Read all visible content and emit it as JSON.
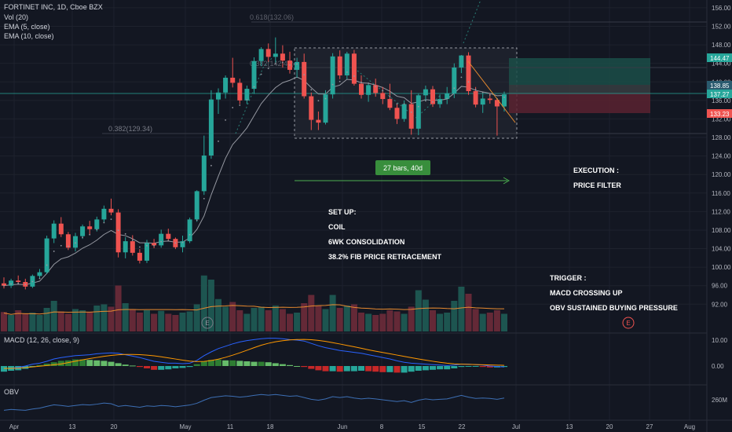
{
  "header": {
    "symbol_line": "FORTINET INC, 1D, Cboe BZX",
    "indicators": [
      "Vol (20)",
      "EMA (5, close)",
      "EMA (10, close)"
    ]
  },
  "colors": {
    "bg": "#131722",
    "grid": "#1e222d",
    "up": "#26a69a",
    "down": "#ef5350",
    "vol_up": "#26a69a",
    "vol_down": "#ef5350",
    "ema5": "#c2c4c9",
    "ema10": "#e88a2f",
    "macd": "#2962ff",
    "signal": "#ff9800",
    "obv": "#2a5a9e",
    "annotation": "#ffffff",
    "fib": "#787b86"
  },
  "annotations": {
    "setup_title": "SET UP:",
    "setup_items": [
      "COIL",
      "6WK CONSOLIDATION",
      "38.2% FIB PRICE RETRACEMENT"
    ],
    "execution_title": "EXECUTION :",
    "execution_item": "PRICE FILTER",
    "trigger_title": "TRIGGER :",
    "trigger_items": [
      "MACD CROSSING UP",
      "OBV SUSTAINED BUYING PRESSURE"
    ],
    "range_badge": "27 bars, 40d",
    "fib_top": "0.618(132.06)",
    "fib_mid": "0.382(142.40)",
    "fib_low": "0.382(129.34)",
    "earnings_marker": "E"
  },
  "panes": {
    "macd_label": "MACD (12, 26, close, 9)",
    "obv_label": "OBV",
    "macd_ticks": [
      "10.00",
      "0.00"
    ],
    "obv_tick": "260M"
  },
  "price_badges": {
    "target": "144.47",
    "mid": "138.85",
    "last": "137.27",
    "stop": "133.23"
  },
  "chart_data": {
    "type": "candlestick",
    "y_axis_ticks": [
      "156.00",
      "152.00",
      "148.00",
      "144.00",
      "140.00",
      "136.00",
      "132.00",
      "128.00",
      "124.00",
      "120.00",
      "116.00",
      "112.00",
      "108.00",
      "104.00",
      "100.00",
      "96.00",
      "92.00"
    ],
    "x_axis_ticks": [
      "Apr",
      "13",
      "20",
      "May",
      "11",
      "18",
      "Jun",
      "8",
      "15",
      "22",
      "Jul",
      "13",
      "20",
      "27",
      "Aug"
    ],
    "ylim": [
      89,
      157
    ],
    "candles": [
      [
        96.5,
        97.8,
        95.4,
        96.0
      ],
      [
        96.0,
        97.5,
        95.5,
        97.1
      ],
      [
        97.1,
        98.2,
        96.4,
        96.8
      ],
      [
        96.8,
        97.5,
        95.2,
        95.8
      ],
      [
        95.8,
        98.4,
        95.5,
        98.1
      ],
      [
        98.1,
        99.6,
        97.6,
        98.9
      ],
      [
        98.9,
        106.8,
        98.5,
        106.2
      ],
      [
        106.2,
        110.1,
        105.2,
        109.4
      ],
      [
        109.4,
        110.8,
        106.5,
        107.1
      ],
      [
        107.1,
        107.6,
        103.7,
        104.2
      ],
      [
        104.2,
        107.4,
        103.4,
        106.7
      ],
      [
        106.7,
        109.2,
        106.1,
        108.8
      ],
      [
        108.8,
        110.0,
        107.0,
        108.2
      ],
      [
        108.2,
        110.9,
        107.7,
        110.3
      ],
      [
        110.3,
        113.3,
        109.7,
        112.6
      ],
      [
        112.6,
        114.8,
        111.2,
        111.8
      ],
      [
        111.8,
        112.5,
        102.1,
        103.2
      ],
      [
        103.2,
        106.5,
        101.9,
        105.6
      ],
      [
        105.6,
        106.9,
        102.5,
        103.1
      ],
      [
        103.1,
        103.9,
        100.8,
        101.4
      ],
      [
        101.4,
        105.9,
        100.9,
        105.2
      ],
      [
        105.2,
        106.1,
        104.1,
        104.7
      ],
      [
        104.7,
        108.1,
        104.2,
        107.2
      ],
      [
        107.2,
        108.3,
        105.6,
        106.1
      ],
      [
        106.1,
        106.4,
        103.9,
        104.3
      ],
      [
        104.3,
        106.8,
        103.2,
        105.6
      ],
      [
        105.6,
        110.7,
        105.2,
        110.3
      ],
      [
        110.3,
        116.6,
        109.8,
        116.4
      ],
      [
        116.4,
        128.4,
        115.6,
        124.1
      ],
      [
        124.1,
        138.2,
        123.4,
        136.2
      ],
      [
        136.2,
        138.6,
        133.1,
        137.7
      ],
      [
        137.7,
        141.4,
        136.4,
        140.9
      ],
      [
        140.9,
        145.2,
        138.8,
        139.8
      ],
      [
        139.8,
        140.7,
        135.2,
        136.0
      ],
      [
        136.0,
        139.2,
        135.2,
        138.5
      ],
      [
        138.5,
        145.3,
        137.4,
        144.5
      ],
      [
        144.5,
        147.5,
        143.4,
        147.1
      ],
      [
        147.1,
        148.3,
        144.3,
        145.4
      ],
      [
        145.4,
        149.6,
        144.2,
        146.1
      ],
      [
        146.1,
        147.9,
        143.1,
        144.6
      ],
      [
        144.6,
        146.5,
        141.8,
        142.6
      ],
      [
        142.6,
        145.2,
        140.9,
        144.3
      ],
      [
        144.3,
        146.1,
        136.4,
        136.9
      ],
      [
        136.9,
        137.7,
        129.6,
        131.8
      ],
      [
        131.8,
        133.6,
        129.6,
        131.2
      ],
      [
        131.2,
        138.2,
        130.8,
        137.3
      ],
      [
        137.3,
        146.2,
        136.4,
        145.5
      ],
      [
        145.5,
        146.8,
        140.6,
        141.4
      ],
      [
        141.4,
        146.5,
        140.6,
        146.1
      ],
      [
        146.1,
        146.9,
        139.2,
        139.6
      ],
      [
        139.6,
        141.4,
        136.4,
        137.2
      ],
      [
        137.2,
        139.7,
        135.7,
        139.3
      ],
      [
        139.3,
        140.7,
        136.8,
        137.6
      ],
      [
        137.6,
        138.9,
        135.2,
        136.3
      ],
      [
        136.3,
        139.6,
        133.9,
        134.4
      ],
      [
        134.4,
        135.4,
        130.9,
        132.0
      ],
      [
        132.0,
        136.0,
        131.4,
        135.2
      ],
      [
        135.2,
        138.2,
        128.6,
        129.9
      ],
      [
        129.9,
        137.4,
        128.5,
        137.1
      ],
      [
        137.1,
        139.2,
        135.9,
        138.4
      ],
      [
        138.4,
        139.1,
        134.6,
        135.2
      ],
      [
        135.2,
        137.3,
        134.4,
        136.3
      ],
      [
        136.3,
        138.9,
        135.2,
        137.5
      ],
      [
        137.5,
        144.0,
        136.5,
        143.1
      ],
      [
        143.1,
        145.8,
        141.9,
        145.7
      ],
      [
        145.7,
        146.4,
        137.2,
        138.0
      ],
      [
        138.0,
        138.9,
        134.5,
        135.1
      ],
      [
        135.1,
        137.4,
        133.3,
        136.4
      ],
      [
        136.4,
        137.5,
        135.3,
        136.1
      ],
      [
        136.1,
        136.3,
        128.4,
        134.7
      ],
      [
        134.7,
        137.9,
        133.6,
        137.3
      ]
    ],
    "volume_relative": [
      0.33,
      0.28,
      0.36,
      0.3,
      0.32,
      0.28,
      0.4,
      0.52,
      0.34,
      0.3,
      0.38,
      0.36,
      0.33,
      0.44,
      0.46,
      0.42,
      0.78,
      0.48,
      0.38,
      0.32,
      0.36,
      0.3,
      0.35,
      0.3,
      0.28,
      0.32,
      0.34,
      0.46,
      0.95,
      0.88,
      0.55,
      0.42,
      0.5,
      0.36,
      0.3,
      0.4,
      0.42,
      0.36,
      0.44,
      0.38,
      0.3,
      0.32,
      0.48,
      0.62,
      0.44,
      0.38,
      0.62,
      0.4,
      0.44,
      0.46,
      0.32,
      0.3,
      0.28,
      0.3,
      0.36,
      0.34,
      0.3,
      0.42,
      0.7,
      0.54,
      0.36,
      0.3,
      0.32,
      0.52,
      0.76,
      0.64,
      0.38,
      0.3,
      0.32,
      0.36,
      0.3
    ],
    "macd_relative": [
      -0.05,
      -0.05,
      -0.03,
      0.0,
      0.04,
      0.06,
      0.1,
      0.15,
      0.18,
      0.2,
      0.22,
      0.23,
      0.24,
      0.26,
      0.27,
      0.28,
      0.27,
      0.24,
      0.21,
      0.18,
      0.14,
      0.1,
      0.08,
      0.06,
      0.06,
      0.05,
      0.06,
      0.12,
      0.22,
      0.3,
      0.37,
      0.42,
      0.47,
      0.51,
      0.54,
      0.56,
      0.58,
      0.59,
      0.59,
      0.58,
      0.56,
      0.55,
      0.53,
      0.48,
      0.43,
      0.39,
      0.36,
      0.33,
      0.31,
      0.29,
      0.27,
      0.24,
      0.21,
      0.18,
      0.15,
      0.11,
      0.08,
      0.06,
      0.05,
      0.04,
      0.03,
      0.02,
      0.01,
      0.02,
      0.04,
      0.04,
      0.03,
      0.02,
      0.0,
      -0.01,
      -0.02
    ],
    "macd_hist_relative": [
      -0.12,
      -0.1,
      -0.09,
      -0.06,
      -0.02,
      0.02,
      0.05,
      0.08,
      0.11,
      0.12,
      0.14,
      0.14,
      0.13,
      0.12,
      0.11,
      0.09,
      0.06,
      0.03,
      0.01,
      -0.02,
      -0.05,
      -0.08,
      -0.08,
      -0.07,
      -0.05,
      -0.04,
      -0.02,
      0.04,
      0.1,
      0.13,
      0.14,
      0.12,
      0.12,
      0.11,
      0.1,
      0.09,
      0.09,
      0.08,
      0.06,
      0.04,
      0.02,
      0.0,
      -0.02,
      -0.06,
      -0.09,
      -0.11,
      -0.11,
      -0.12,
      -0.11,
      -0.11,
      -0.1,
      -0.11,
      -0.12,
      -0.13,
      -0.13,
      -0.14,
      -0.14,
      -0.12,
      -0.1,
      -0.09,
      -0.08,
      -0.07,
      -0.07,
      -0.05,
      -0.02,
      -0.01,
      -0.01,
      -0.02,
      -0.03,
      -0.03,
      -0.02
    ],
    "obv_relative": [
      0.2,
      0.24,
      0.22,
      0.2,
      0.26,
      0.3,
      0.38,
      0.45,
      0.42,
      0.38,
      0.42,
      0.46,
      0.44,
      0.48,
      0.53,
      0.5,
      0.38,
      0.42,
      0.38,
      0.34,
      0.4,
      0.38,
      0.42,
      0.4,
      0.36,
      0.4,
      0.44,
      0.52,
      0.66,
      0.78,
      0.82,
      0.86,
      0.84,
      0.8,
      0.83,
      0.88,
      0.92,
      0.89,
      0.92,
      0.88,
      0.84,
      0.86,
      0.78,
      0.7,
      0.66,
      0.72,
      0.82,
      0.78,
      0.82,
      0.76,
      0.72,
      0.75,
      0.72,
      0.68,
      0.64,
      0.6,
      0.64,
      0.56,
      0.66,
      0.72,
      0.68,
      0.7,
      0.72,
      0.8,
      0.88,
      0.8,
      0.74,
      0.76,
      0.74,
      0.7,
      0.76
    ]
  }
}
